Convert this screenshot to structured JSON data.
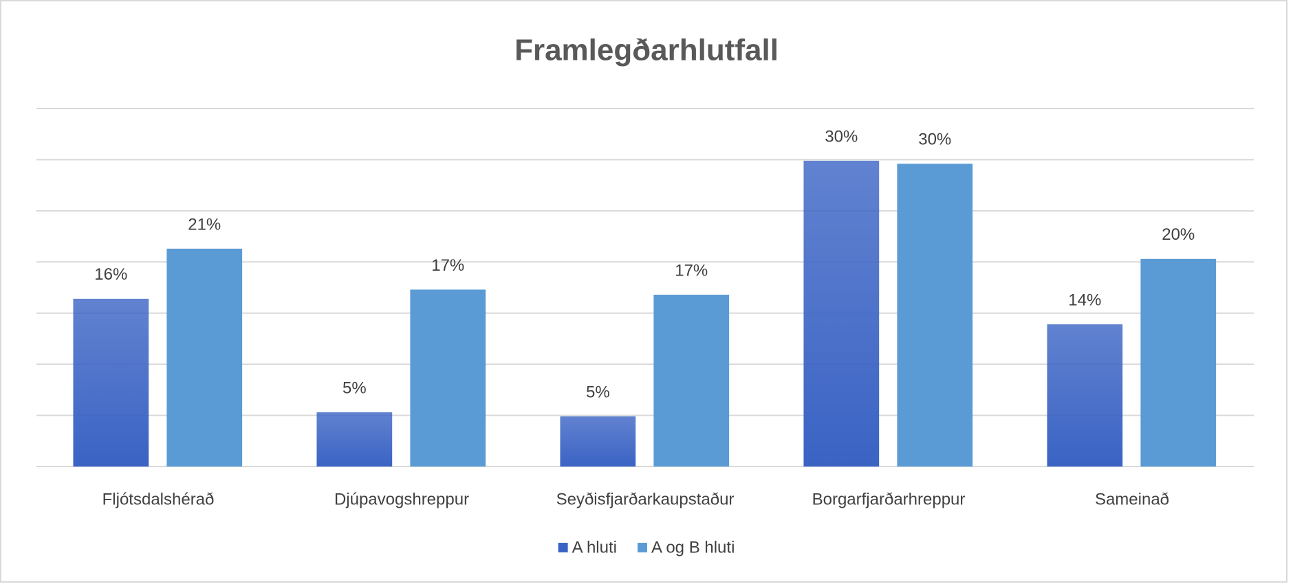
{
  "chart_data": {
    "type": "bar",
    "title": "Framlegðarhlutfall",
    "categories": [
      "Fljótsdalshérað",
      "Djúpavogshreppur",
      "Seyðisfjarðarkaupstaður",
      "Borgarfjarðarhreppur",
      "Sameinað"
    ],
    "series": [
      {
        "name": "A hluti",
        "color": "#3a63c4",
        "values": [
          16.4,
          5.3,
          4.9,
          29.9,
          13.9
        ],
        "value_labels": [
          "16%",
          "5%",
          "5%",
          "30%",
          "14%"
        ]
      },
      {
        "name": "A og B hluti",
        "color": "#5b9bd5",
        "values": [
          21.3,
          17.3,
          16.8,
          29.6,
          20.3
        ],
        "value_labels": [
          "21%",
          "17%",
          "17%",
          "30%",
          "20%"
        ]
      }
    ],
    "ylim": [
      0,
      35
    ],
    "yticks": [
      0,
      5,
      10,
      15,
      20,
      25,
      30,
      35
    ],
    "grid": true,
    "legend": "bottom"
  }
}
